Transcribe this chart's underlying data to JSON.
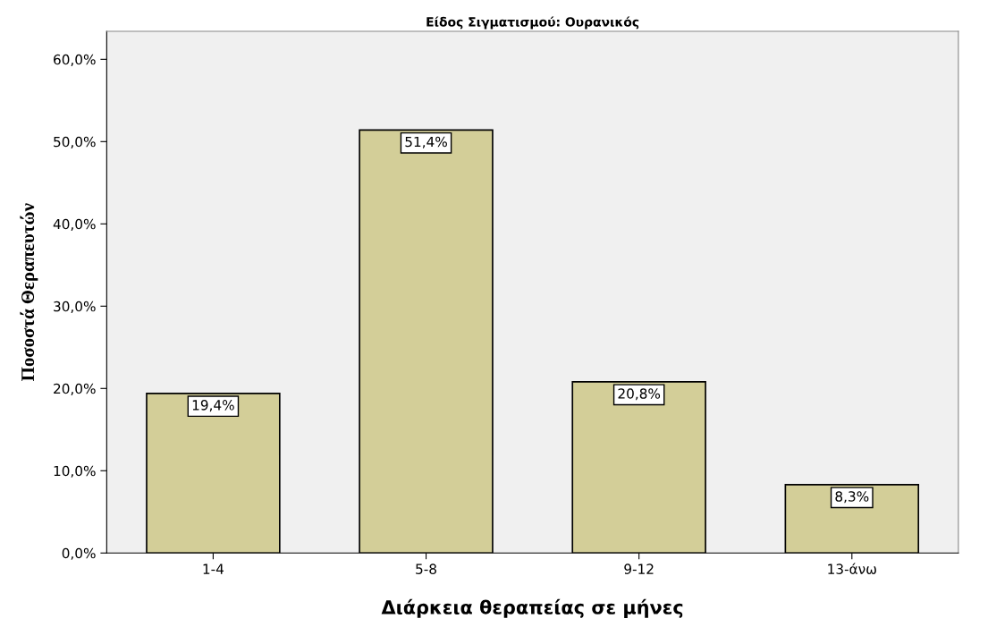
{
  "chart_data": {
    "type": "bar",
    "title": "Είδος Σιγματισμού: Ουρανικός",
    "xlabel": "Διάρκεια θεραπείας σε μήνες",
    "ylabel": "Ποσοστά Θεραπευτών",
    "categories": [
      "1-4",
      "5-8",
      "9-12",
      "13-άνω"
    ],
    "values": [
      19.4,
      51.4,
      20.8,
      8.3
    ],
    "value_labels": [
      "19,4%",
      "51,4%",
      "20,8%",
      "8,3%"
    ],
    "color": "#d3ce98",
    "ylim": [
      0,
      63.4
    ],
    "yticks": [
      {
        "value": 0,
        "label": "0,0%"
      },
      {
        "value": 10,
        "label": "10,0%"
      },
      {
        "value": 20,
        "label": "20,0%"
      },
      {
        "value": 30,
        "label": "30,0%"
      },
      {
        "value": 40,
        "label": "40,0%"
      },
      {
        "value": 50,
        "label": "50,0%"
      },
      {
        "value": 60,
        "label": "60,0%"
      }
    ],
    "grid": false
  }
}
